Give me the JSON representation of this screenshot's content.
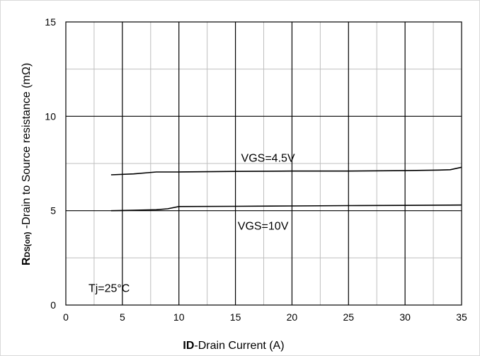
{
  "chart_data": {
    "type": "line",
    "xlabel_bold": "ID",
    "xlabel_rest": "-Drain Current (A)",
    "ylabel_bold": "R",
    "ylabel_sub": "DS(on)",
    "ylabel_rest": " -Drain to Source resistance (mΩ)",
    "xlim": [
      0,
      35
    ],
    "ylim": [
      0,
      15
    ],
    "x_ticks": [
      "0",
      "5",
      "10",
      "15",
      "20",
      "25",
      "30",
      "35"
    ],
    "y_ticks": [
      "0",
      "5",
      "10",
      "15"
    ],
    "grid": true,
    "series": [
      {
        "name": "VGS=4.5V",
        "x": [
          4,
          6,
          8,
          10,
          15,
          20,
          25,
          30,
          33,
          34,
          35
        ],
        "y": [
          6.9,
          6.95,
          7.05,
          7.05,
          7.08,
          7.1,
          7.1,
          7.12,
          7.15,
          7.17,
          7.3
        ]
      },
      {
        "name": "VGS=10V",
        "x": [
          4,
          6,
          8,
          9,
          10,
          15,
          20,
          25,
          30,
          35
        ],
        "y": [
          5.0,
          5.02,
          5.05,
          5.1,
          5.22,
          5.23,
          5.25,
          5.27,
          5.28,
          5.3
        ]
      }
    ],
    "annotations": [
      {
        "text": "VGS=4.5V",
        "x": 15.5,
        "y": 7.6
      },
      {
        "text": "VGS=10V",
        "x": 15.2,
        "y": 4.0
      },
      {
        "text": "Tj=25°C",
        "x": 2.0,
        "y": 0.7
      }
    ]
  }
}
